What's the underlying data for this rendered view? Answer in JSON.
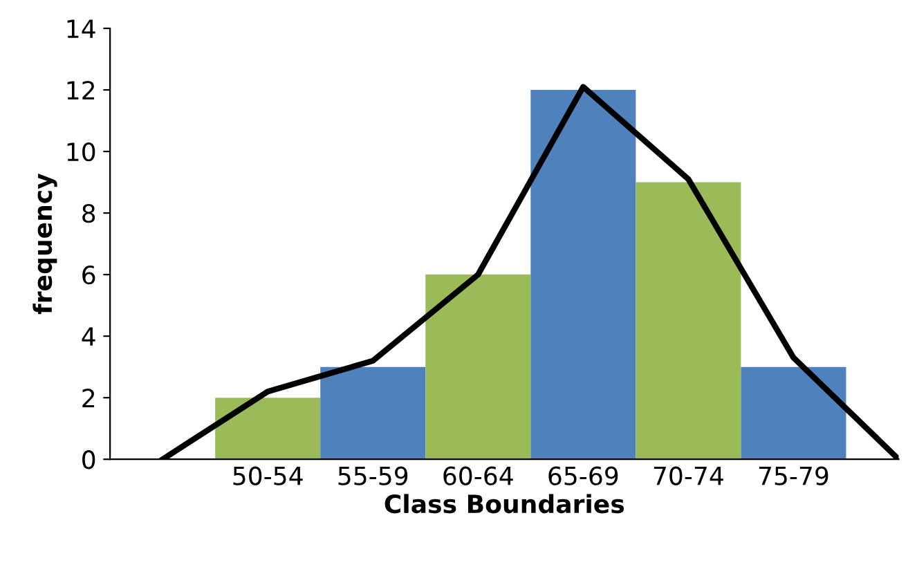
{
  "chart_data": {
    "type": "bar",
    "xlabel": "Class Boundaries",
    "ylabel": "frequency",
    "categories": [
      null,
      "50-54",
      "55-59",
      "60-64",
      "65-69",
      "70-74",
      "75-79",
      null
    ],
    "series": [
      {
        "colors": [
          "#9bbb59",
          "#9bbb59",
          "#4f81bd",
          "#9bbb59",
          "#4f81bd",
          "#9bbb59",
          "#4f81bd",
          "#9bbb59"
        ],
        "values": [
          null,
          2,
          3,
          6,
          12,
          9,
          3,
          null
        ]
      },
      {
        "type": "line",
        "color": "#000000",
        "values": [
          0,
          2.2,
          3.2,
          6,
          12.1,
          9.1,
          3.3,
          0
        ]
      }
    ],
    "ylim": [
      0,
      14
    ],
    "yticks": [
      0,
      2,
      4,
      6,
      8,
      10,
      12,
      14
    ],
    "grid": false,
    "legend": false,
    "marker": "none",
    "line_style": "solid"
  }
}
